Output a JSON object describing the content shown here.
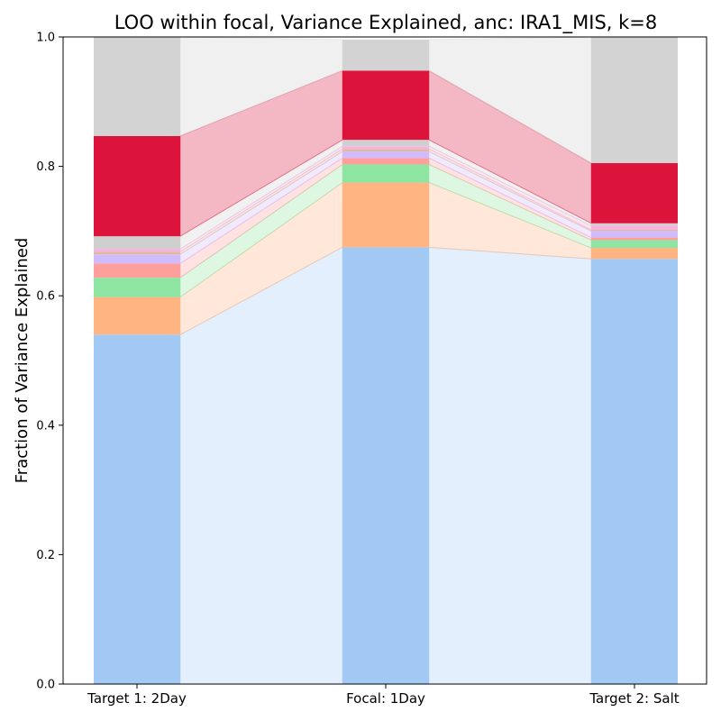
{
  "chart_data": {
    "type": "bar",
    "stacked": true,
    "title": "LOO within focal, Variance Explained, anc: IRA1_MIS, k=8",
    "xlabel": "",
    "ylabel": "Fraction of Variance Explained",
    "ylim": [
      0,
      1.0
    ],
    "yticks": [
      "0.0",
      "0.2",
      "0.4",
      "0.6",
      "0.8",
      "1.0"
    ],
    "grid": false,
    "legend": "none",
    "categories": [
      "Target 1: 2Day",
      "Focal: 1Day",
      "Target 2: Salt"
    ],
    "series": [
      {
        "color": "#a1c9f4",
        "values": [
          0.54,
          0.675,
          0.657
        ]
      },
      {
        "color": "#ffb482",
        "values": [
          0.058,
          0.1,
          0.017
        ]
      },
      {
        "color": "#8de5a1",
        "values": [
          0.03,
          0.028,
          0.012
        ]
      },
      {
        "color": "#ff9f9b",
        "values": [
          0.022,
          0.01,
          0.004
        ]
      },
      {
        "color": "#d0bbff",
        "values": [
          0.014,
          0.01,
          0.01
        ]
      },
      {
        "color": "#debb9b",
        "values": [
          0.004,
          0.004,
          0.002
        ]
      },
      {
        "color": "#fab0e4",
        "values": [
          0.004,
          0.004,
          0.006
        ]
      },
      {
        "color": "#cfcfcf",
        "values": [
          0.02,
          0.01,
          0.004
        ]
      },
      {
        "color": "#dc143c",
        "values": [
          0.155,
          0.107,
          0.093
        ]
      },
      {
        "color": "#d3d3d3",
        "values": [
          0.153,
          0.048,
          0.195
        ]
      }
    ]
  }
}
